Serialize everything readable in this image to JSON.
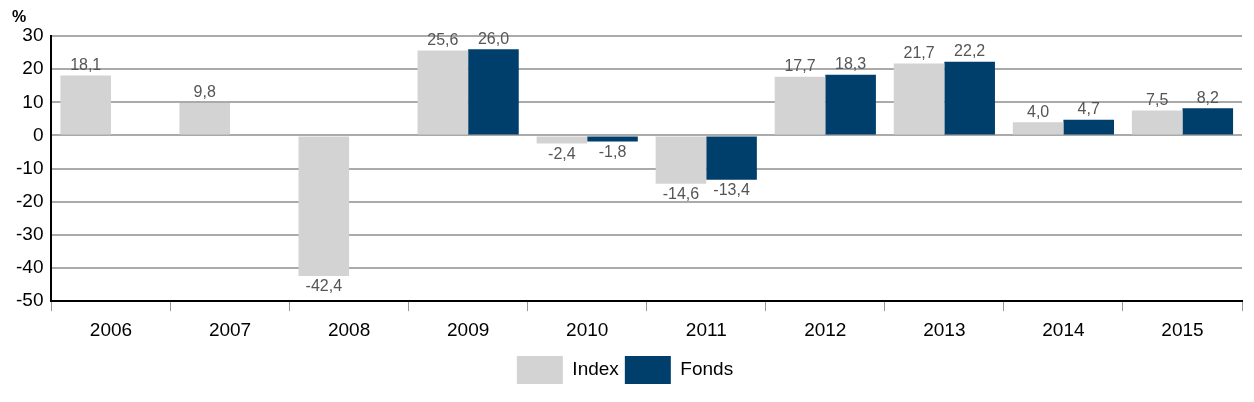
{
  "chart_data": {
    "type": "bar",
    "ylabel": "%",
    "categories": [
      "2006",
      "2007",
      "2008",
      "2009",
      "2010",
      "2011",
      "2012",
      "2013",
      "2014",
      "2015"
    ],
    "series": [
      {
        "name": "Index",
        "color": "#d3d3d3",
        "values": [
          18.1,
          9.8,
          -42.4,
          25.6,
          -2.4,
          -14.6,
          17.7,
          21.7,
          4.0,
          7.5
        ],
        "value_labels": [
          "18,1",
          "9,8",
          "-42,4",
          "25,6",
          "-2,4",
          "-14,6",
          "17,7",
          "21,7",
          "4,0",
          "7,5"
        ]
      },
      {
        "name": "Fonds",
        "color": "#003f6b",
        "values": [
          null,
          null,
          null,
          26.0,
          -1.8,
          -13.4,
          18.3,
          22.2,
          4.7,
          8.2
        ],
        "value_labels": [
          null,
          null,
          null,
          "26,0",
          "-1,8",
          "-13,4",
          "18,3",
          "22,2",
          "4,7",
          "8,2"
        ]
      }
    ],
    "ylim": [
      -50,
      30
    ],
    "yticks": [
      -50,
      -40,
      -30,
      -20,
      -10,
      0,
      10,
      20,
      30
    ],
    "grid": "y",
    "legend": "bottom"
  }
}
